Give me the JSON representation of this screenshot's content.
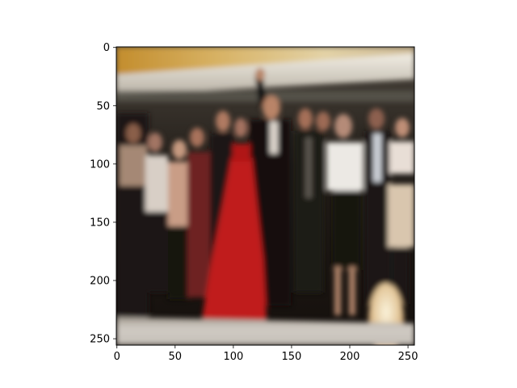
{
  "figure": {
    "background": "#ffffff"
  },
  "axes": {
    "x_ticks": [
      "0",
      "50",
      "100",
      "150",
      "200",
      "250"
    ],
    "y_ticks": [
      "0",
      "50",
      "100",
      "150",
      "200",
      "250"
    ],
    "xlim": [
      -0.5,
      255.5
    ],
    "ylim": [
      255.5,
      -0.5
    ],
    "image_content": "blurry photo of a group of people standing on a stage; a woman in a long red dress in the center, a man in a dark suit raising his arm behind her, a woman in a white blouse to the right"
  },
  "colors": {
    "red_dress": "#c01c1a",
    "stage_light": "#e9e1d1",
    "ceiling_glow": "#c99a3e",
    "crowd_dark": "#181411",
    "skin": "#b98467",
    "white_blouse": "#ece9e4"
  }
}
